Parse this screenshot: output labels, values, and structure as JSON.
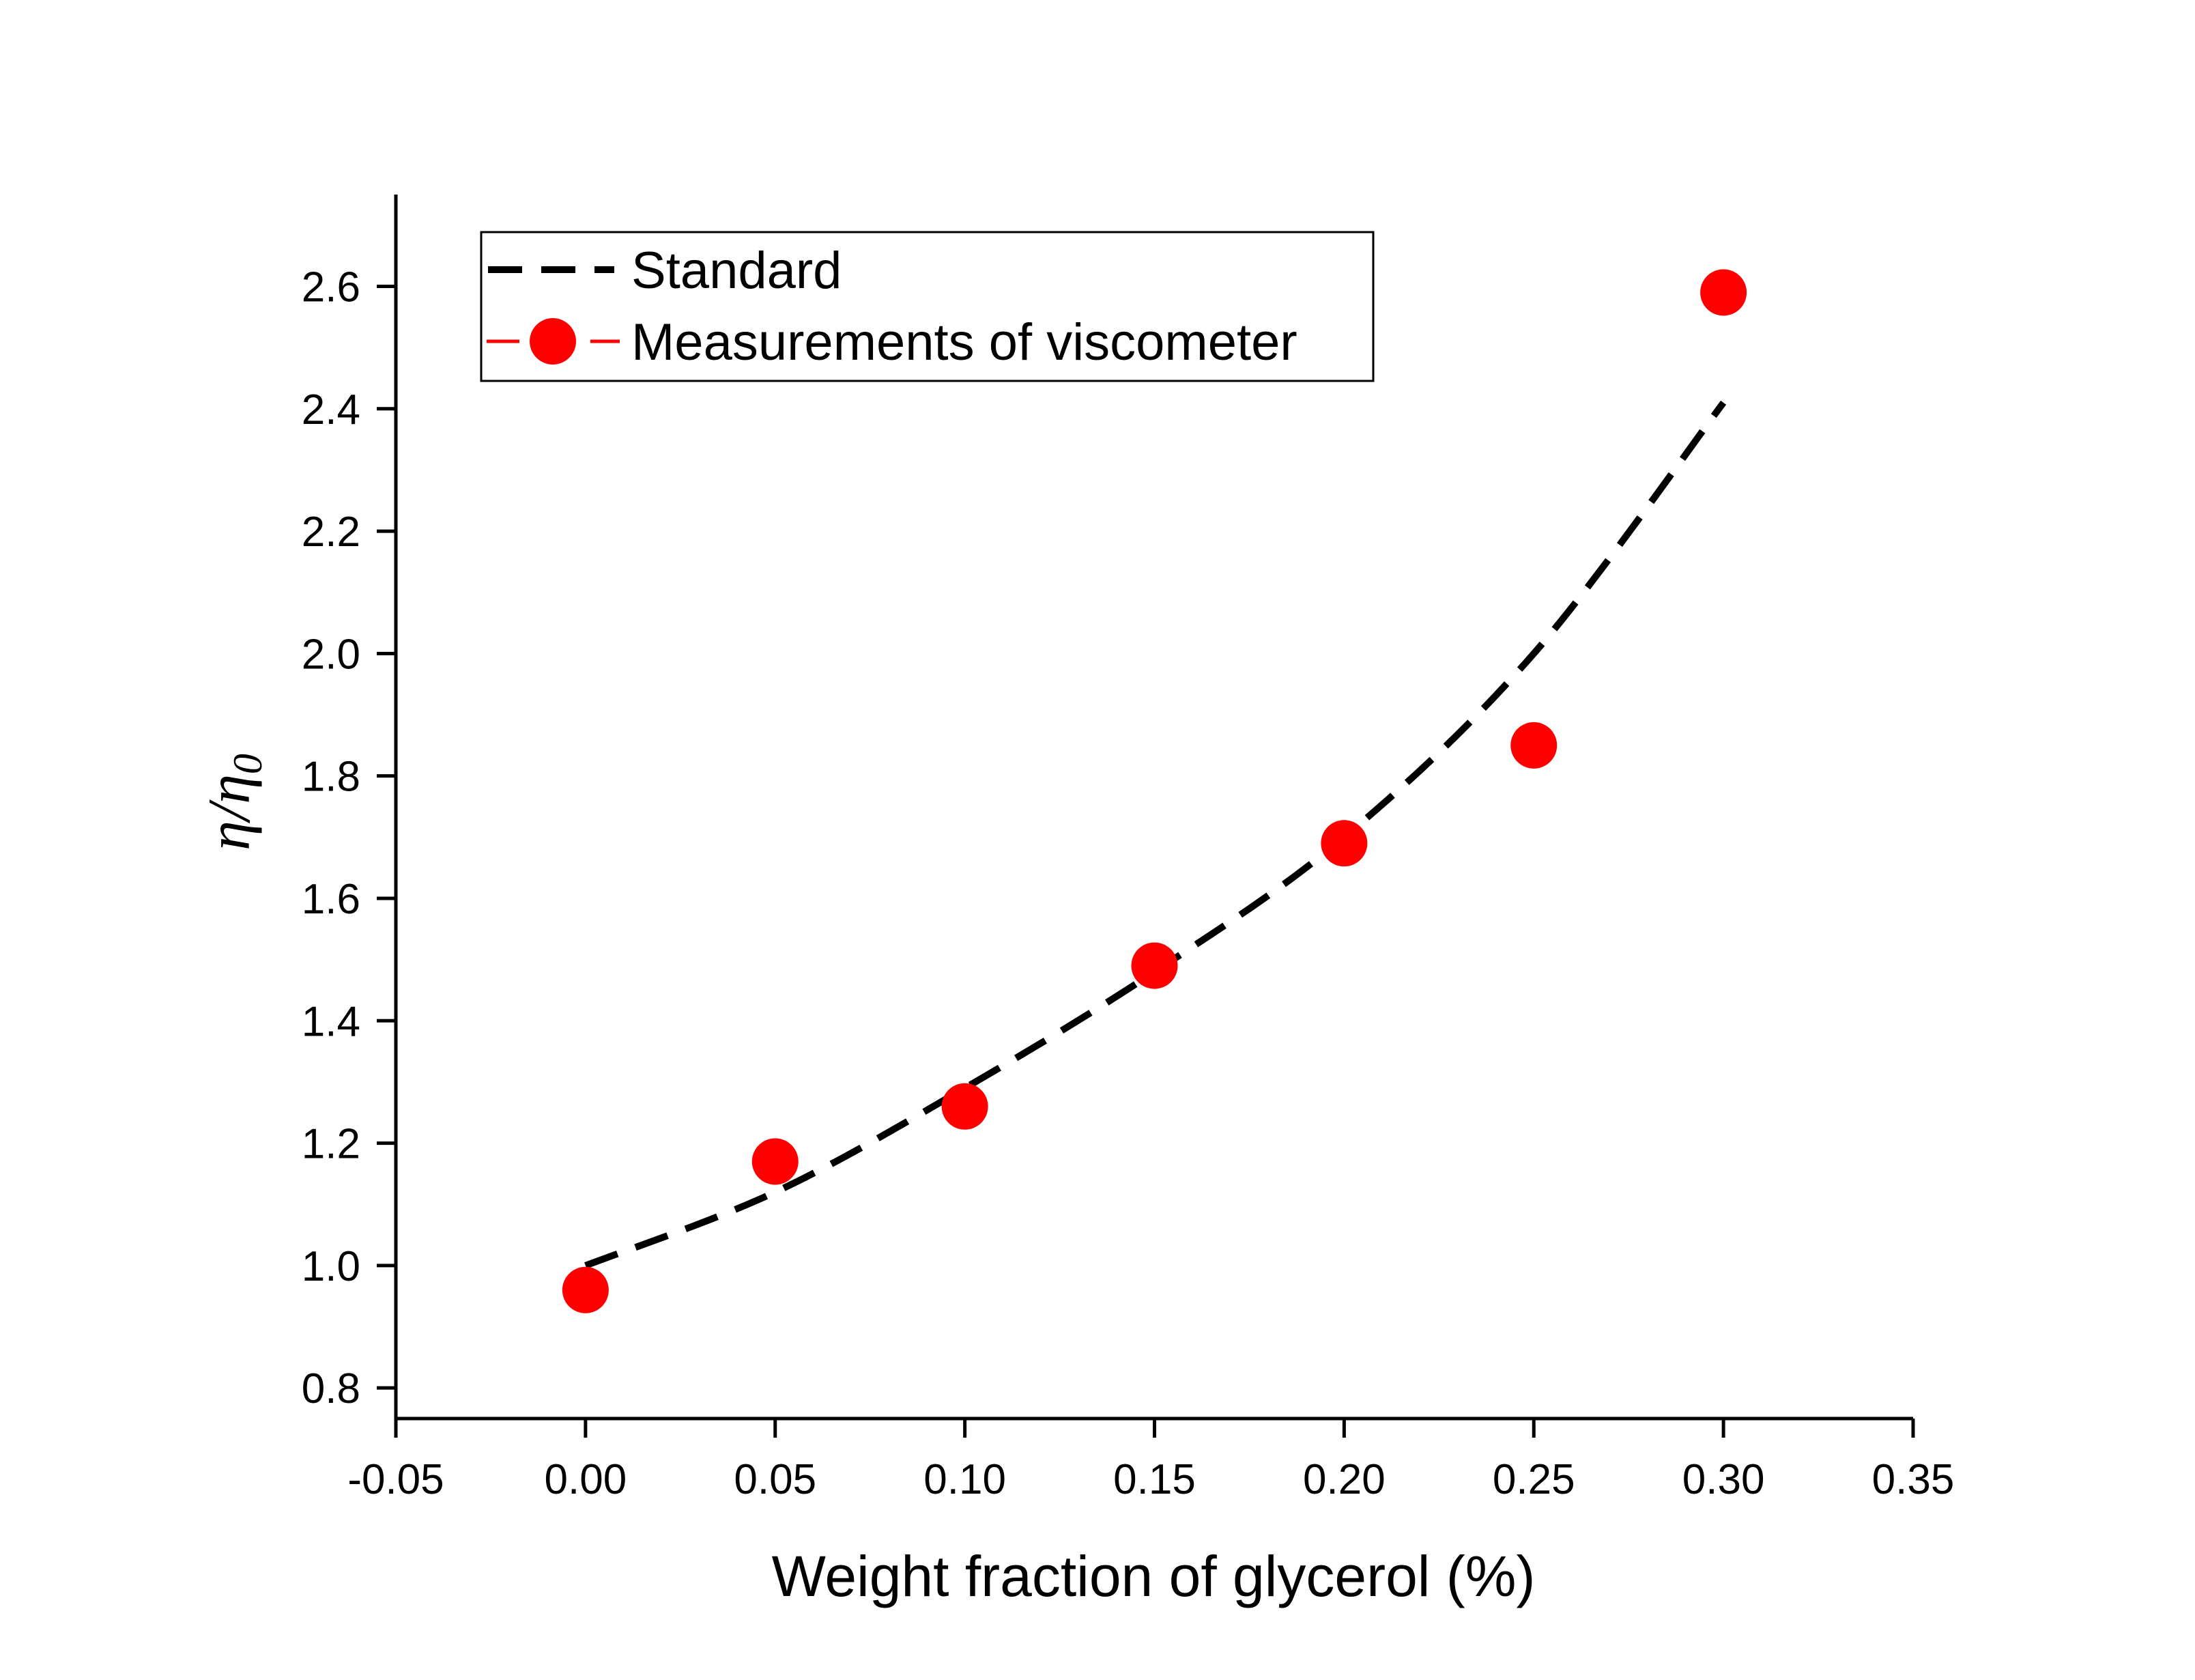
{
  "chart_data": {
    "type": "scatter",
    "xlabel": "Weight fraction of glycerol (%)",
    "ylabel": {
      "symbol": "η/η",
      "subscript": "0"
    },
    "xlim": [
      -0.05,
      0.35
    ],
    "ylim": [
      0.75,
      2.75
    ],
    "x_ticks": [
      "-0.05",
      "0.00",
      "0.05",
      "0.10",
      "0.15",
      "0.20",
      "0.25",
      "0.30",
      "0.35"
    ],
    "y_ticks": [
      "0.8",
      "1.0",
      "1.2",
      "1.4",
      "1.6",
      "1.8",
      "2.0",
      "2.2",
      "2.4",
      "2.6"
    ],
    "grid": false,
    "legend_position": "top-left",
    "series": [
      {
        "name": "Standard",
        "style": "dashed-line",
        "color": "#000000",
        "x": [
          0.0,
          0.05,
          0.1,
          0.15,
          0.2,
          0.25,
          0.3
        ],
        "y": [
          1.0,
          1.12,
          1.29,
          1.48,
          1.7,
          2.0,
          2.41
        ]
      },
      {
        "name": "Measurements of viscometer",
        "style": "markers",
        "color": "#ff0000",
        "x": [
          0.0,
          0.05,
          0.1,
          0.15,
          0.2,
          0.25,
          0.3
        ],
        "y": [
          0.96,
          1.17,
          1.26,
          1.49,
          1.69,
          1.85,
          2.59
        ]
      }
    ]
  }
}
